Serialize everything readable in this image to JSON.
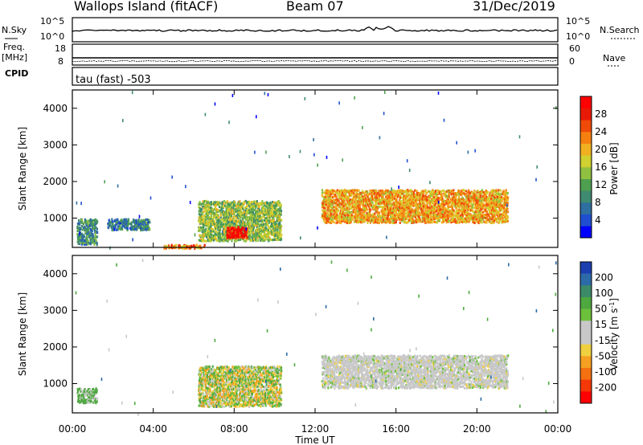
{
  "header": {
    "site": "Wallops Island (fitACF)",
    "beam": "Beam 07",
    "date": "31/Dec/2019"
  },
  "panels": {
    "nsky": {
      "label": "N.Sky",
      "ticks": [
        "10^5",
        "10^0"
      ]
    },
    "nsearch": {
      "label": "N.Search",
      "ticks": [
        "10^5",
        "10^0"
      ]
    },
    "freq": {
      "label_top": "Freq.",
      "label_bottom": "[MHz]",
      "ticks": [
        "18",
        "8"
      ]
    },
    "nave": {
      "label": "Nave",
      "ticks": [
        "60",
        "0"
      ]
    },
    "cpid": {
      "label": "CPID",
      "value": "tau (fast) -503"
    }
  },
  "chart_data": [
    {
      "type": "heatmap",
      "name": "power",
      "ylabel": "Slant Range [km]",
      "yticks": [
        "1000",
        "2000",
        "3000",
        "4000"
      ],
      "ylim": [
        200,
        4500
      ],
      "xlim_hours": [
        0,
        24
      ],
      "xticks": [
        "00:00",
        "04:00",
        "08:00",
        "12:00",
        "16:00",
        "20:00",
        "00:00"
      ],
      "colorbar": {
        "label": "Power [dB]",
        "ticks": [
          "4",
          "8",
          "12",
          "16",
          "20",
          "24",
          "28"
        ],
        "colors": [
          "#0000ff",
          "#1f4fd0",
          "#2f6ea0",
          "#3f8a70",
          "#4ea050",
          "#8fc040",
          "#d0d030",
          "#f0b020",
          "#f58010",
          "#f04a08",
          "#e81a05",
          "#ff0000"
        ]
      },
      "regions": [
        {
          "hours": [
            0.2,
            1.2
          ],
          "range": [
            300,
            1000
          ],
          "level": 0.3
        },
        {
          "hours": [
            1.7,
            3.8
          ],
          "range": [
            700,
            1000
          ],
          "level": 0.25
        },
        {
          "hours": [
            6.2,
            10.3
          ],
          "range": [
            400,
            1500
          ],
          "level": 0.45
        },
        {
          "hours": [
            7.6,
            8.6
          ],
          "range": [
            480,
            780
          ],
          "level": 0.95
        },
        {
          "hours": [
            12.3,
            21.5
          ],
          "range": [
            900,
            1800
          ],
          "level": 0.65
        },
        {
          "hours": [
            4.5,
            6.5
          ],
          "range": [
            200,
            300
          ],
          "level": 0.7
        }
      ]
    },
    {
      "type": "heatmap",
      "name": "velocity",
      "ylabel": "Slant Range [km]",
      "yticks": [
        "1000",
        "2000",
        "3000",
        "4000"
      ],
      "ylim": [
        200,
        4500
      ],
      "xlim_hours": [
        0,
        24
      ],
      "xticks": [
        "00:00",
        "04:00",
        "08:00",
        "12:00",
        "16:00",
        "20:00",
        "00:00"
      ],
      "xlabel": "Time UT",
      "colorbar": {
        "label": "Velocity [m s^-1]",
        "ticks": [
          "200",
          "100",
          "50",
          "15",
          "-15",
          "-50",
          "-100",
          "-200"
        ],
        "colors": [
          "#1c3fb0",
          "#2c6aa8",
          "#3c8a68",
          "#4ea840",
          "#6cc03c",
          "#c8c8c8",
          "#c8c8c8",
          "#f0d040",
          "#f5a020",
          "#f57010",
          "#f53808",
          "#ff0000"
        ]
      },
      "regions": [
        {
          "hours": [
            0.2,
            1.2
          ],
          "range": [
            500,
            900
          ],
          "level": "green"
        },
        {
          "hours": [
            6.2,
            10.3
          ],
          "range": [
            400,
            1500
          ],
          "level": "mixed"
        },
        {
          "hours": [
            12.3,
            21.5
          ],
          "range": [
            900,
            1800
          ],
          "level": "grey"
        }
      ]
    }
  ]
}
